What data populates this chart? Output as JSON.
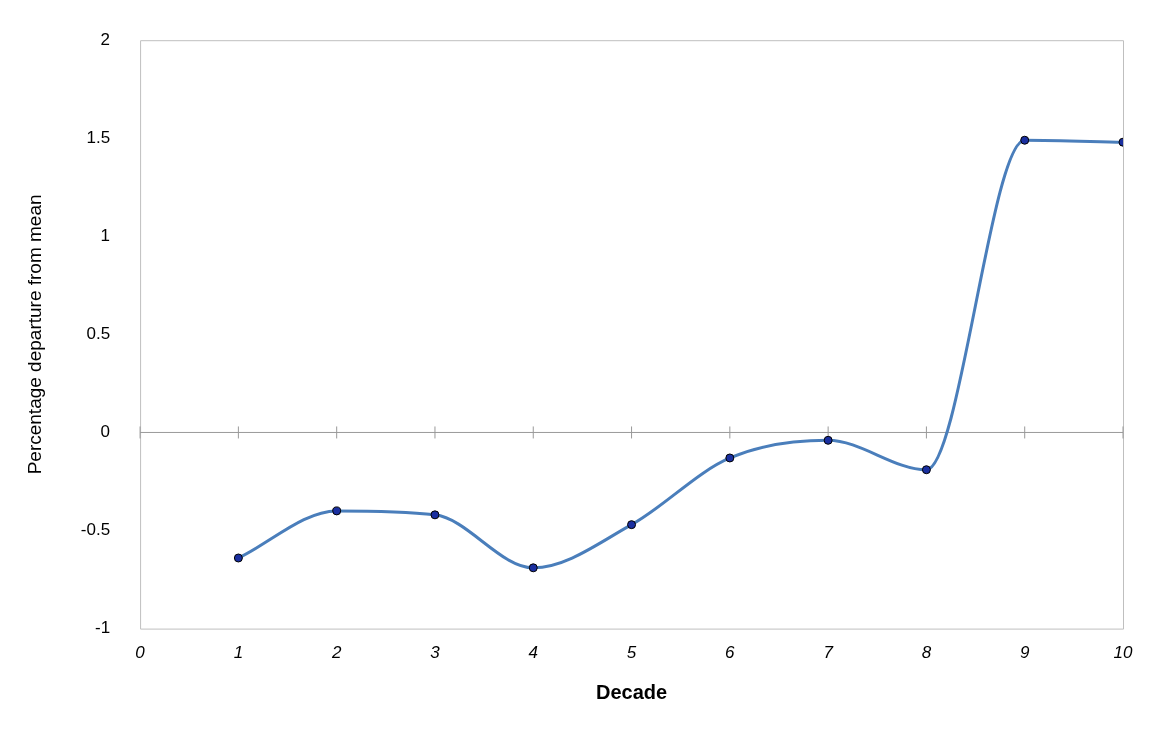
{
  "chart_data": {
    "type": "line",
    "xlabel": "Decade",
    "ylabel": "Percentage departure from mean",
    "x": [
      1,
      2,
      3,
      4,
      5,
      6,
      7,
      8,
      9,
      10
    ],
    "series": [
      {
        "color": "#4a7ebb",
        "values": [
          -0.64,
          -0.4,
          -0.42,
          -0.69,
          -0.47,
          -0.13,
          -0.04,
          -0.19,
          1.49,
          1.48
        ]
      }
    ],
    "xlim": [
      0,
      10
    ],
    "xticks": [
      0,
      1,
      2,
      3,
      4,
      5,
      6,
      7,
      8,
      9,
      10
    ],
    "ylim": [
      -1,
      2
    ],
    "yticks": [
      -1,
      -0.5,
      0,
      0.5,
      1,
      1.5,
      2
    ],
    "ref_lines": [
      {
        "axis": "y",
        "value": 0
      }
    ],
    "grid": false,
    "legend": false,
    "marker": "circle",
    "line_style": "solid"
  }
}
